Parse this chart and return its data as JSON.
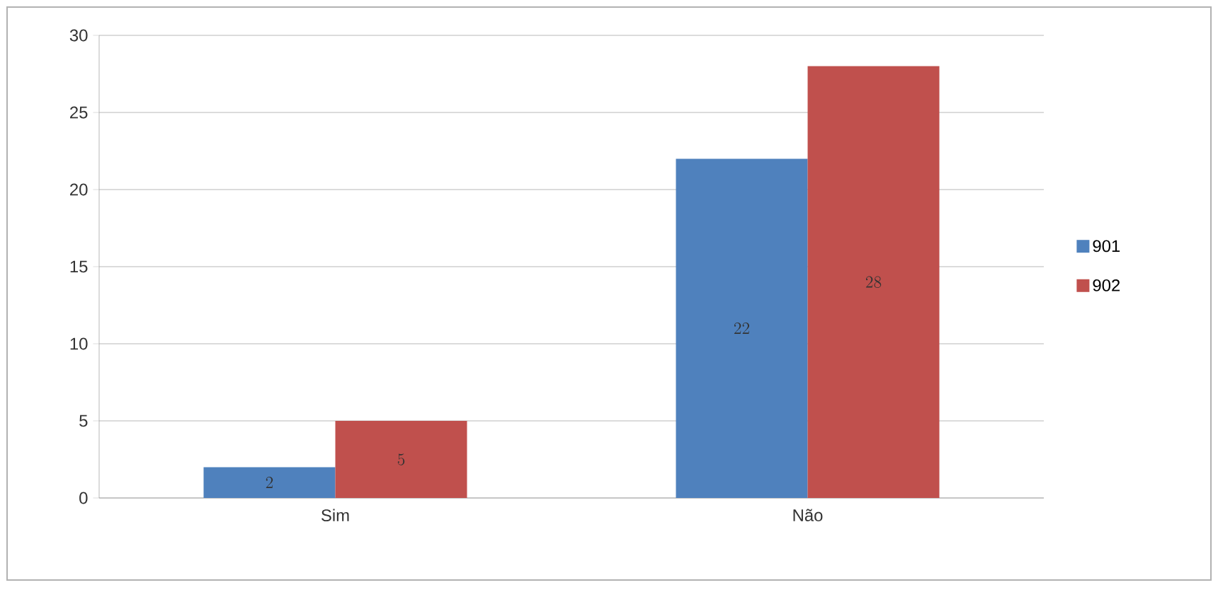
{
  "chart_data": {
    "type": "bar",
    "categories": [
      "Sim",
      "Não"
    ],
    "series": [
      {
        "name": "901",
        "color": "#4f81bd",
        "values": [
          2,
          22
        ]
      },
      {
        "name": "902",
        "color": "#c0504d",
        "values": [
          5,
          28
        ]
      }
    ],
    "ylim": [
      0,
      30
    ],
    "yticks": [
      0,
      5,
      10,
      15,
      20,
      25,
      30
    ],
    "grid": "y",
    "legend": "right",
    "data_labels": true
  }
}
